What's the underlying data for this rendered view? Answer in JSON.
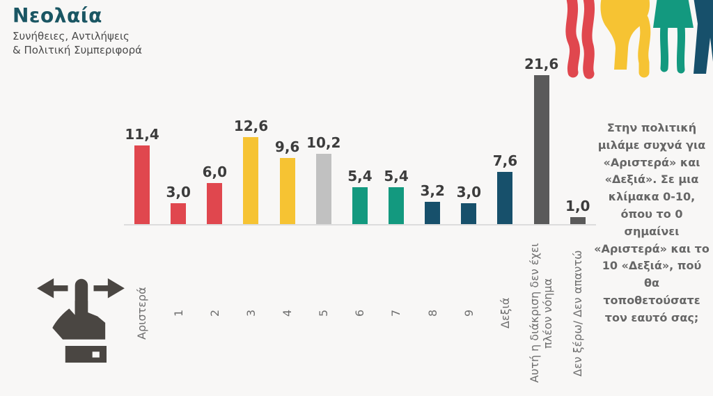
{
  "header": {
    "title": "Νεολαία",
    "subtitle": "Συνήθειες, Αντιλήψεις\n& Πολιτική Συμπεριφορά"
  },
  "question": "Στην πολιτική\nμιλάμε συχνά για\n«Αριστερά» και\n«Δεξιά». Σε μια\nκλίμακα 0-10,\nόπου το 0\nσημαίνει\n«Αριστερά» και το\n10 «Δεξιά», πού\nθα\nτοποθετούσατε\nτον εαυτό σας;",
  "icons": {
    "swipe": "swipe-left-right-hand-gesture",
    "silhouettes": "four-youth-figure-silhouettes"
  },
  "colors": {
    "background": "#F8F7F6",
    "title": "#1A5663",
    "red": "#E0474E",
    "yellow": "#F6C333",
    "light_gray": "#C1C1C1",
    "teal": "#13997F",
    "petrol": "#17506B",
    "dark_gray": "#5A5A5A",
    "axis_line": "#DCDCDC",
    "value_label": "#3C3C3C",
    "tick_label": "#6E6E6E",
    "question_text": "#666666",
    "icon_gray": "#4A4642"
  },
  "chart_data": {
    "type": "bar",
    "categories": [
      "Αριστερά",
      "1",
      "2",
      "3",
      "4",
      "5",
      "6",
      "7",
      "8",
      "9",
      "Δεξιά",
      "Αυτή η διάκριση δεν έχει\nπλέον νόημα",
      "Δεν ξέρω/ Δεν απαντώ"
    ],
    "values": [
      11.4,
      3.0,
      6.0,
      12.6,
      9.6,
      10.2,
      5.4,
      5.4,
      3.2,
      3.0,
      7.6,
      21.6,
      1.0
    ],
    "value_labels": [
      "11,4",
      "3,0",
      "6,0",
      "12,6",
      "9,6",
      "10,2",
      "5,4",
      "5,4",
      "3,2",
      "3,0",
      "7,6",
      "21,6",
      "1,0"
    ],
    "bar_colors": [
      "#E0474E",
      "#E0474E",
      "#E0474E",
      "#F6C333",
      "#F6C333",
      "#C1C1C1",
      "#13997F",
      "#13997F",
      "#17506B",
      "#17506B",
      "#17506B",
      "#5A5A5A",
      "#5A5A5A"
    ],
    "title": "",
    "xlabel": "",
    "ylabel": "",
    "ylim": [
      0,
      22
    ],
    "unit": "percent",
    "grid": false,
    "legend": false,
    "value_labels_position": "above-bars",
    "x_tick_rotation": 90
  }
}
